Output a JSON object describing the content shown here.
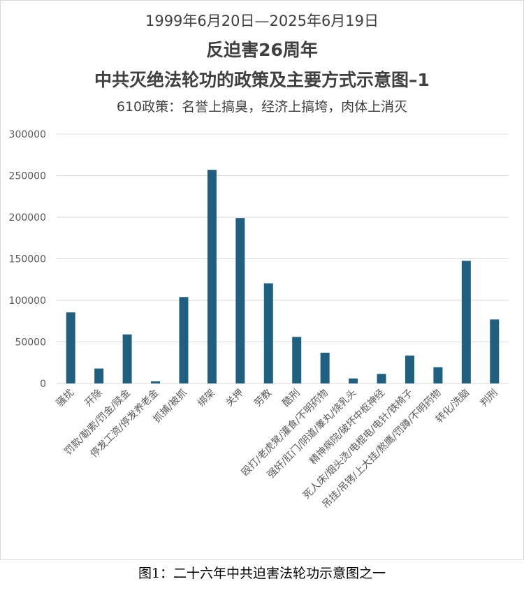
{
  "title": {
    "date_range": "1999年6月20日—2025年6月19日",
    "line1": "反迫害26周年",
    "line2": "中共灭绝法轮功的政策及主要方式示意图–1",
    "subtitle": "610政策：名誉上搞臭，经济上搞垮，肉体上消灭"
  },
  "caption": "图1：二十六年中共迫害法轮功示意图之一",
  "colors": {
    "bar": "#1f5f7f",
    "grid": "#d9d9d9",
    "text": "#595959"
  },
  "chart_data": {
    "type": "bar",
    "title": "",
    "xlabel": "",
    "ylabel": "",
    "ylim": [
      0,
      300000
    ],
    "yticks": [
      0,
      50000,
      100000,
      150000,
      200000,
      250000,
      300000
    ],
    "grid": true,
    "categories": [
      "骚扰",
      "开除",
      "罚款/勒索/罚金/赎金",
      "停发工资/停发养老金",
      "抓捕/被抓",
      "绑架",
      "关押",
      "劳教",
      "酷刑",
      "殴打/老虎凳/灌食/不明药物",
      "强奸/肛门/阴道/睾丸/烧乳头",
      "精神病院/破坏中枢神经",
      "死人床/烟头烫/电棍电/电针/铁椅子",
      "吊挂/吊铐/上大挂/熬鹰/罚蹲/不明药物",
      "转化/洗脑",
      "判刑"
    ],
    "values": [
      85500,
      18000,
      59000,
      2500,
      104000,
      257000,
      199000,
      120500,
      56000,
      37000,
      6000,
      11500,
      33500,
      19500,
      147500,
      77000
    ]
  }
}
